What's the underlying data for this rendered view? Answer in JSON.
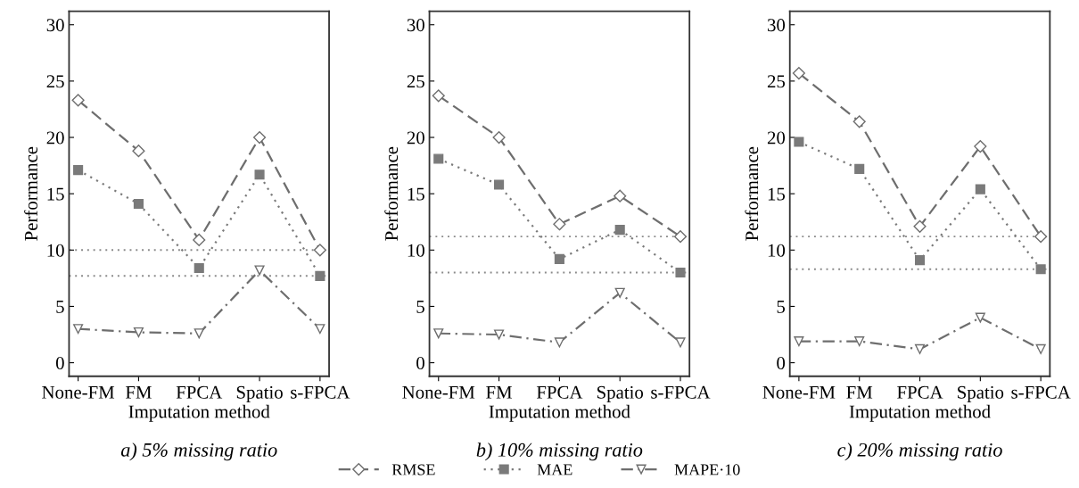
{
  "chart_data": [
    {
      "type": "line",
      "title": "a) 5% missing ratio",
      "xlabel": "Imputation method",
      "ylabel": "Performance",
      "categories": [
        "None-FM",
        "FM",
        "FPCA",
        "Spatio",
        "s-FPCA"
      ],
      "ylim": [
        -1.2,
        31.2
      ],
      "yticks": [
        0,
        5,
        10,
        15,
        20,
        25,
        30
      ],
      "legend": "bottom",
      "series": [
        {
          "name": "RMSE",
          "color": "#6e6e6e",
          "marker": "diamond",
          "line_style": "dashed",
          "values": [
            23.3,
            18.8,
            10.9,
            20.0,
            10.0
          ]
        },
        {
          "name": "MAE",
          "color": "#7a7a7a",
          "marker": "square",
          "line_style": "dotted",
          "values": [
            17.1,
            14.1,
            8.4,
            16.7,
            7.7
          ]
        },
        {
          "name": "MAPE·10",
          "color": "#6e6e6e",
          "marker": "triangle",
          "line_style": "dashdot",
          "values": [
            3.0,
            2.7,
            2.6,
            8.2,
            3.0
          ]
        }
      ],
      "ref_lines": [
        {
          "axis": "y",
          "value": 10.0,
          "color": "#8a8a8a",
          "line_style": "dotted"
        },
        {
          "axis": "y",
          "value": 7.7,
          "color": "#8a8a8a",
          "line_style": "dotted"
        }
      ]
    },
    {
      "type": "line",
      "title": "b) 10% missing ratio",
      "xlabel": "Imputation method",
      "ylabel": "Performance",
      "categories": [
        "None-FM",
        "FM",
        "FPCA",
        "Spatio",
        "s-FPCA"
      ],
      "ylim": [
        -1.2,
        31.2
      ],
      "yticks": [
        0,
        5,
        10,
        15,
        20,
        25,
        30
      ],
      "legend": "bottom",
      "series": [
        {
          "name": "RMSE",
          "color": "#6e6e6e",
          "marker": "diamond",
          "line_style": "dashed",
          "values": [
            23.7,
            20.0,
            12.3,
            14.8,
            11.2
          ]
        },
        {
          "name": "MAE",
          "color": "#7a7a7a",
          "marker": "square",
          "line_style": "dotted",
          "values": [
            18.1,
            15.8,
            9.2,
            11.8,
            8.0
          ]
        },
        {
          "name": "MAPE·10",
          "color": "#6e6e6e",
          "marker": "triangle",
          "line_style": "dashdot",
          "values": [
            2.6,
            2.5,
            1.8,
            6.2,
            1.8
          ]
        }
      ],
      "ref_lines": [
        {
          "axis": "y",
          "value": 11.2,
          "color": "#8a8a8a",
          "line_style": "dotted"
        },
        {
          "axis": "y",
          "value": 8.0,
          "color": "#8a8a8a",
          "line_style": "dotted"
        }
      ]
    },
    {
      "type": "line",
      "title": "c) 20% missing ratio",
      "xlabel": "Imputation method",
      "ylabel": "Performance",
      "categories": [
        "None-FM",
        "FM",
        "FPCA",
        "Spatio",
        "s-FPCA"
      ],
      "ylim": [
        -1.2,
        31.2
      ],
      "yticks": [
        0,
        5,
        10,
        15,
        20,
        25,
        30
      ],
      "legend": "bottom",
      "series": [
        {
          "name": "RMSE",
          "color": "#6e6e6e",
          "marker": "diamond",
          "line_style": "dashed",
          "values": [
            25.7,
            21.4,
            12.1,
            19.2,
            11.2
          ]
        },
        {
          "name": "MAE",
          "color": "#7a7a7a",
          "marker": "square",
          "line_style": "dotted",
          "values": [
            19.6,
            17.2,
            9.1,
            15.4,
            8.3
          ]
        },
        {
          "name": "MAPE·10",
          "color": "#6e6e6e",
          "marker": "triangle",
          "line_style": "dashdot",
          "values": [
            1.9,
            1.9,
            1.2,
            4.0,
            1.2
          ]
        }
      ],
      "ref_lines": [
        {
          "axis": "y",
          "value": 11.2,
          "color": "#8a8a8a",
          "line_style": "dotted"
        },
        {
          "axis": "y",
          "value": 8.3,
          "color": "#8a8a8a",
          "line_style": "dotted"
        }
      ]
    }
  ]
}
